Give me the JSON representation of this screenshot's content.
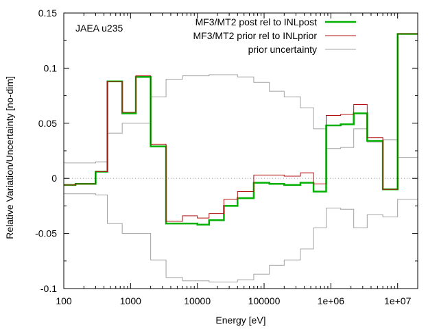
{
  "chart_data": {
    "type": "line",
    "style": "step",
    "annotation": "JAEA u235",
    "xlabel": "Energy [eV]",
    "ylabel": "Relative Variation/Uncertainty [no-dim]",
    "xscale": "log",
    "xlim": [
      100,
      20000000
    ],
    "ylim": [
      -0.1,
      0.15
    ],
    "xticks": [
      100,
      1000,
      10000,
      100000,
      1000000,
      10000000
    ],
    "xtick_labels": [
      "100",
      "1000",
      "10000",
      "100000",
      "1e+06",
      "1e+07"
    ],
    "yticks": [
      -0.1,
      -0.05,
      0,
      0.05,
      0.1,
      0.15
    ],
    "ytick_labels": [
      "-0.1",
      "-0.05",
      "0",
      "0.05",
      "0.1",
      "0.15"
    ],
    "zero_line": true,
    "legend_position": "top-right",
    "bin_edges": [
      100,
      150,
      300,
      450,
      750,
      1200,
      2000,
      3400,
      6000,
      10000,
      15000,
      25000,
      40000,
      70000,
      120000,
      200000,
      350000,
      550000,
      850000,
      1400000,
      2200000,
      3500000,
      6000000,
      10000000,
      20000000
    ],
    "series": [
      {
        "name": "MF3/MT2 post rel to INLpost",
        "color": "#00b000",
        "values": [
          -0.006,
          -0.005,
          0.006,
          0.088,
          0.059,
          0.092,
          0.029,
          -0.041,
          -0.041,
          -0.042,
          -0.038,
          -0.025,
          -0.018,
          -0.004,
          -0.005,
          -0.006,
          -0.004,
          -0.012,
          0.048,
          0.049,
          0.059,
          0.034,
          -0.01,
          0.131
        ]
      },
      {
        "name": "MF3/MT2 prior rel to INLprior",
        "color": "#b01010",
        "values": [
          -0.006,
          -0.005,
          0.006,
          0.088,
          0.06,
          0.093,
          0.031,
          -0.039,
          -0.034,
          -0.036,
          -0.032,
          -0.019,
          -0.012,
          0.003,
          0.003,
          0.002,
          0.005,
          -0.005,
          0.057,
          0.058,
          0.067,
          0.037,
          -0.01,
          0.131
        ]
      },
      {
        "name": "prior uncertainty",
        "color": "#a0a0a0",
        "symmetric": true,
        "values": [
          0.014,
          0.014,
          0.015,
          0.041,
          0.05,
          0.05,
          0.074,
          0.09,
          0.093,
          0.093,
          0.094,
          0.094,
          0.092,
          0.087,
          0.079,
          0.074,
          0.064,
          0.045,
          0.027,
          0.028,
          0.045,
          0.033,
          0.035,
          0.019
        ]
      }
    ]
  }
}
